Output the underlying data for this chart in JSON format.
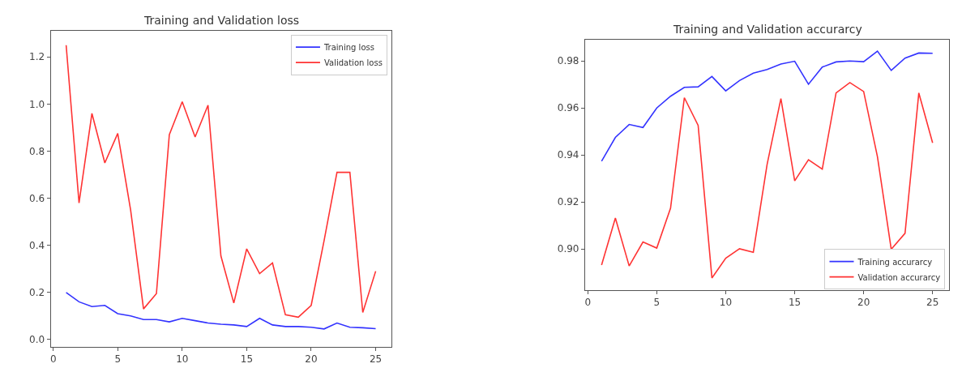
{
  "chart_data": [
    {
      "type": "line",
      "title": "Training and Validation loss",
      "x": [
        1,
        2,
        3,
        4,
        5,
        6,
        7,
        8,
        9,
        10,
        11,
        12,
        13,
        14,
        15,
        16,
        17,
        18,
        19,
        20,
        21,
        22,
        23,
        24,
        25
      ],
      "series": [
        {
          "name": "Training loss",
          "color": "#3333ff",
          "values": [
            0.2,
            0.16,
            0.14,
            0.145,
            0.11,
            0.1,
            0.085,
            0.085,
            0.075,
            0.09,
            0.08,
            0.07,
            0.065,
            0.062,
            0.055,
            0.09,
            0.062,
            0.055,
            0.055,
            0.052,
            0.045,
            0.07,
            0.052,
            0.05,
            0.046
          ]
        },
        {
          "name": "Validation loss",
          "color": "#ff3333",
          "values": [
            1.25,
            0.58,
            0.96,
            0.75,
            0.875,
            0.55,
            0.13,
            0.195,
            0.87,
            1.01,
            0.86,
            0.995,
            0.355,
            0.155,
            0.385,
            0.28,
            0.325,
            0.105,
            0.095,
            0.145,
            0.42,
            0.71,
            0.71,
            0.115,
            0.29
          ]
        }
      ],
      "xlim": [
        -0.2,
        26.2
      ],
      "xticks": [
        0,
        5,
        10,
        15,
        20,
        25
      ],
      "ylim": [
        -0.03,
        1.31
      ],
      "yticks": [
        {
          "value": 0,
          "label": "0.0"
        },
        0.2,
        0.4,
        0.6,
        0.8,
        {
          "value": 1,
          "label": "1.0"
        },
        1.2
      ],
      "legend": "top right"
    },
    {
      "type": "line",
      "title": "Training and Validation accurarcy",
      "x": [
        1,
        2,
        3,
        4,
        5,
        6,
        7,
        8,
        9,
        10,
        11,
        12,
        13,
        14,
        15,
        16,
        17,
        18,
        19,
        20,
        21,
        22,
        23,
        24,
        25
      ],
      "series": [
        {
          "name": "Training accurarcy",
          "color": "#3333ff",
          "values": [
            0.9374,
            0.9475,
            0.953,
            0.9517,
            0.96,
            0.965,
            0.9688,
            0.969,
            0.9734,
            0.9673,
            0.9717,
            0.9748,
            0.9764,
            0.9787,
            0.9799,
            0.9701,
            0.9774,
            0.9796,
            0.98,
            0.9797,
            0.9842,
            0.976,
            0.9812,
            0.9834,
            0.9833
          ]
        },
        {
          "name": "Validation accurarcy",
          "color": "#ff3333",
          "values": [
            0.8932,
            0.9132,
            0.8928,
            0.903,
            0.9004,
            0.9174,
            0.9644,
            0.9526,
            0.8877,
            0.8961,
            0.9001,
            0.8986,
            0.936,
            0.964,
            0.929,
            0.938,
            0.934,
            0.9664,
            0.9708,
            0.967,
            0.9393,
            0.8999,
            0.9067,
            0.9664,
            0.9452
          ]
        }
      ],
      "xlim": [
        -0.2,
        26.2
      ],
      "xticks": [
        0,
        5,
        10,
        15,
        20,
        25
      ],
      "ylim": [
        0.8825,
        0.989
      ],
      "yticks": [
        {
          "value": 0.9,
          "label": "0.90"
        },
        0.92,
        0.94,
        0.96,
        0.98
      ],
      "legend": "bottom right"
    }
  ]
}
